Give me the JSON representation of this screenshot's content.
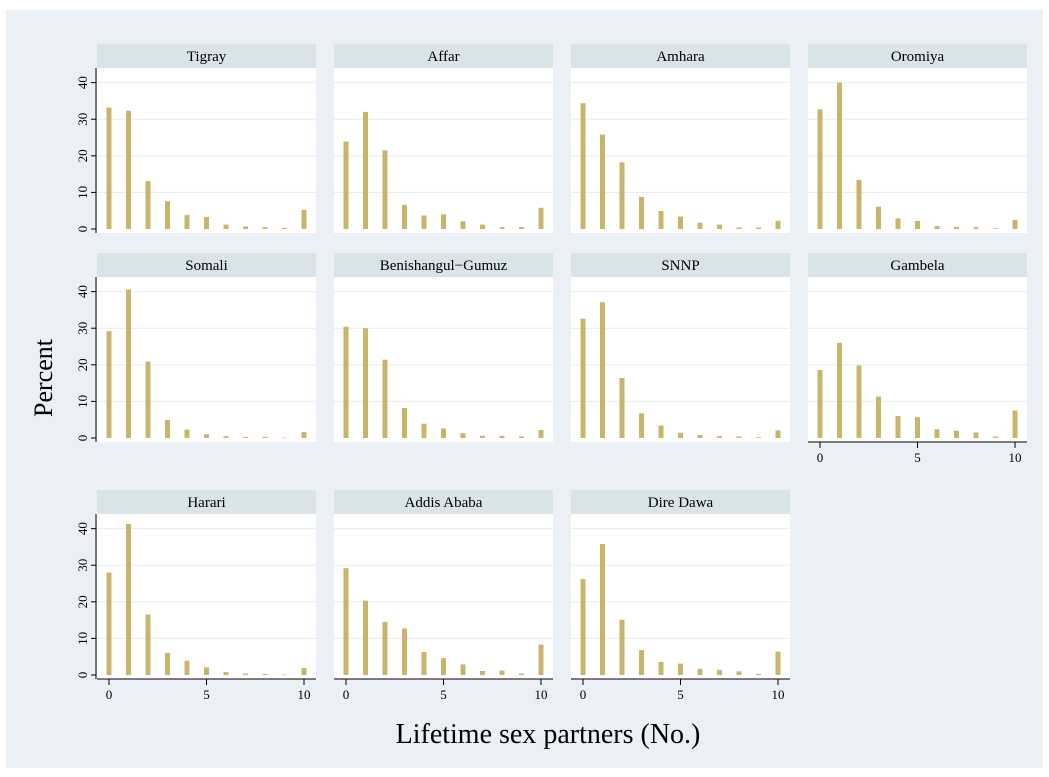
{
  "chart_data": {
    "type": "bar",
    "xlabel": "Lifetime sex partners (No.)",
    "ylabel": "Percent",
    "x": [
      0,
      1,
      2,
      3,
      4,
      5,
      6,
      7,
      8,
      9,
      10
    ],
    "xticks": [
      "0",
      "5",
      "10"
    ],
    "yticks": [
      "0",
      "10",
      "20",
      "30",
      "40"
    ],
    "ylim": [
      0,
      44
    ],
    "xlim": [
      -0.5,
      10.5
    ],
    "grid": true,
    "bar_color": "#c8b46a",
    "panel_header_color": "#d8e3ea",
    "outer_background": "#eaf0f5",
    "panels": [
      {
        "name": "Tigray",
        "values": [
          33.2,
          32.3,
          13.1,
          7.6,
          3.8,
          3.3,
          1.2,
          0.7,
          0.5,
          0.3,
          5.2
        ]
      },
      {
        "name": "Affar",
        "values": [
          23.9,
          32.0,
          21.5,
          6.6,
          3.7,
          4.0,
          2.1,
          1.2,
          0.5,
          0.5,
          5.8
        ]
      },
      {
        "name": "Amhara",
        "values": [
          34.4,
          25.8,
          18.2,
          8.8,
          4.9,
          3.4,
          1.7,
          1.2,
          0.4,
          0.4,
          2.2
        ]
      },
      {
        "name": "Oromiya",
        "values": [
          32.7,
          40.0,
          13.4,
          6.1,
          2.9,
          2.2,
          0.8,
          0.6,
          0.5,
          0.2,
          2.5
        ]
      },
      {
        "name": "Somali",
        "values": [
          29.2,
          40.6,
          20.9,
          4.9,
          2.3,
          1.0,
          0.5,
          0.3,
          0.3,
          0.1,
          1.6
        ]
      },
      {
        "name": "Benishangul−Gumuz",
        "values": [
          30.4,
          30.0,
          21.4,
          8.2,
          3.9,
          2.6,
          1.3,
          0.6,
          0.6,
          0.4,
          2.2
        ]
      },
      {
        "name": "SNNP",
        "values": [
          32.6,
          37.1,
          16.4,
          6.7,
          3.4,
          1.4,
          0.8,
          0.5,
          0.4,
          0.2,
          2.1
        ]
      },
      {
        "name": "Gambela",
        "values": [
          18.6,
          26.0,
          19.8,
          11.3,
          6.0,
          5.7,
          2.4,
          2.0,
          1.5,
          0.4,
          7.5
        ]
      },
      {
        "name": "Harari",
        "values": [
          28.0,
          41.3,
          16.5,
          6.0,
          3.9,
          2.1,
          0.8,
          0.4,
          0.3,
          0.1,
          1.9
        ]
      },
      {
        "name": "Addis Ababa",
        "values": [
          29.2,
          20.3,
          14.5,
          12.7,
          6.3,
          4.6,
          2.9,
          1.1,
          1.2,
          0.4,
          8.3
        ]
      },
      {
        "name": "Dire Dawa",
        "values": [
          26.2,
          35.8,
          15.1,
          6.8,
          3.6,
          3.1,
          1.7,
          1.4,
          1.0,
          0.3,
          6.4
        ]
      }
    ]
  }
}
